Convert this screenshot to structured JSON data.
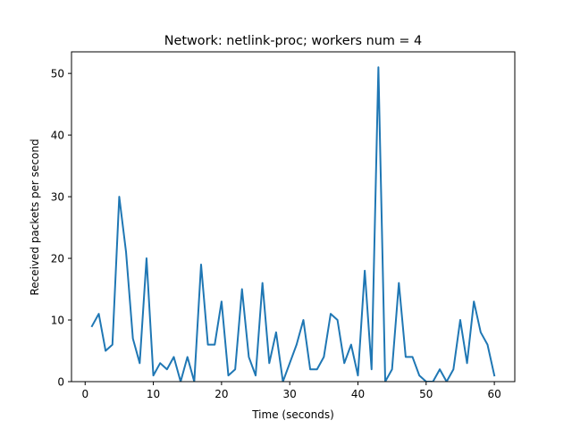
{
  "chart_data": {
    "type": "line",
    "title": "Network: netlink-proc; workers num = 4",
    "xlabel": "Time (seconds)",
    "ylabel": "Received packets per second",
    "xlim": [
      -2,
      63
    ],
    "ylim": [
      0,
      53.5
    ],
    "xticks": [
      0,
      10,
      20,
      30,
      40,
      50,
      60
    ],
    "yticks": [
      0,
      10,
      20,
      30,
      40,
      50
    ],
    "grid": false,
    "line_color": "#1f77b4",
    "x": [
      1,
      2,
      3,
      4,
      5,
      6,
      7,
      8,
      9,
      10,
      11,
      12,
      13,
      14,
      15,
      16,
      17,
      18,
      19,
      20,
      21,
      22,
      23,
      24,
      25,
      26,
      27,
      28,
      29,
      30,
      31,
      32,
      33,
      34,
      35,
      36,
      37,
      38,
      39,
      40,
      41,
      42,
      43,
      44,
      45,
      46,
      47,
      48,
      49,
      50,
      51,
      52,
      53,
      54,
      55,
      56,
      57,
      58,
      59,
      60
    ],
    "series": [
      {
        "values": [
          9,
          11,
          5,
          6,
          30,
          21,
          7,
          3,
          20,
          1,
          3,
          2,
          4,
          0,
          4,
          0,
          19,
          6,
          6,
          13,
          1,
          2,
          15,
          4,
          1,
          16,
          3,
          8,
          0,
          3,
          6,
          10,
          2,
          2,
          4,
          11,
          10,
          3,
          6,
          1,
          18,
          2,
          51,
          0,
          2,
          16,
          4,
          4,
          1,
          0,
          0,
          2,
          0,
          2,
          10,
          3,
          13,
          8,
          6,
          1
        ]
      }
    ]
  }
}
